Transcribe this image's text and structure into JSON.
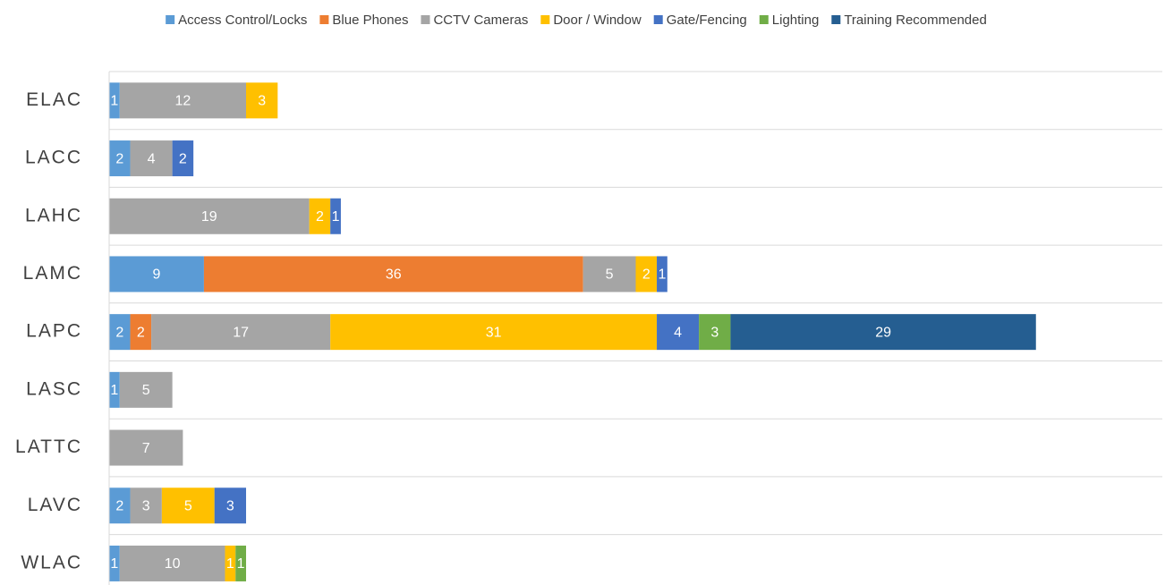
{
  "chart_data": {
    "type": "stacked_barh",
    "categories": [
      "ELAC",
      "LACC",
      "LAHC",
      "LAMC",
      "LAPC",
      "LASC",
      "LATTC",
      "LAVC",
      "WLAC"
    ],
    "series": [
      {
        "name": "Access Control/Locks",
        "color": "#5b9bd5",
        "values": [
          1,
          2,
          null,
          9,
          2,
          1,
          null,
          2,
          1
        ]
      },
      {
        "name": "Blue Phones",
        "color": "#ed7d31",
        "values": [
          null,
          null,
          null,
          36,
          2,
          null,
          null,
          null,
          null
        ]
      },
      {
        "name": "CCTV Cameras",
        "color": "#a5a5a5",
        "values": [
          12,
          4,
          19,
          5,
          17,
          5,
          7,
          3,
          10
        ]
      },
      {
        "name": "Door / Window",
        "color": "#ffc000",
        "values": [
          3,
          null,
          2,
          2,
          31,
          null,
          null,
          5,
          1
        ]
      },
      {
        "name": "Gate/Fencing",
        "color": "#4472c4",
        "values": [
          null,
          2,
          1,
          1,
          4,
          null,
          null,
          3,
          null
        ]
      },
      {
        "name": "Lighting",
        "color": "#70ad47",
        "values": [
          null,
          null,
          null,
          null,
          3,
          null,
          null,
          null,
          1
        ]
      },
      {
        "name": "Training Recommended",
        "color": "#255e91",
        "values": [
          null,
          null,
          null,
          null,
          29,
          null,
          null,
          null,
          null
        ]
      }
    ],
    "xlim": [
      0,
      100
    ],
    "legend": "top",
    "grid": true
  }
}
